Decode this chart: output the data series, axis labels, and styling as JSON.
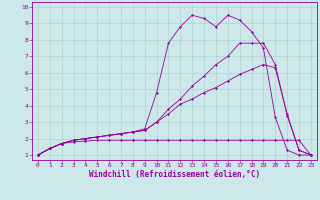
{
  "xlabel": "Windchill (Refroidissement éolien,°C)",
  "background_color": "#cce8e8",
  "line_color": "#990099",
  "grid_color": "#aacccc",
  "xlim": [
    -0.5,
    23.5
  ],
  "ylim": [
    0.7,
    10.3
  ],
  "xticks": [
    0,
    1,
    2,
    3,
    4,
    5,
    6,
    7,
    8,
    9,
    10,
    11,
    12,
    13,
    14,
    15,
    16,
    17,
    18,
    19,
    20,
    21,
    22,
    23
  ],
  "yticks": [
    1,
    2,
    3,
    4,
    5,
    6,
    7,
    8,
    9,
    10
  ],
  "line1_x": [
    0,
    1,
    2,
    3,
    4,
    5,
    6,
    7,
    8,
    9,
    10,
    11,
    12,
    13,
    14,
    15,
    16,
    17,
    18,
    19,
    20,
    21,
    22,
    23
  ],
  "line1_y": [
    1.0,
    1.4,
    1.7,
    1.8,
    1.85,
    1.9,
    1.9,
    1.9,
    1.9,
    1.9,
    1.9,
    1.9,
    1.9,
    1.9,
    1.9,
    1.9,
    1.9,
    1.9,
    1.9,
    1.9,
    1.9,
    1.9,
    1.9,
    1.0
  ],
  "line2_x": [
    0,
    1,
    2,
    3,
    4,
    5,
    6,
    7,
    8,
    9,
    10,
    11,
    12,
    13,
    14,
    15,
    16,
    17,
    18,
    19,
    20,
    21,
    22,
    23
  ],
  "line2_y": [
    1.0,
    1.4,
    1.7,
    1.9,
    2.0,
    2.1,
    2.2,
    2.3,
    2.4,
    2.5,
    3.0,
    3.5,
    4.1,
    4.4,
    4.8,
    5.1,
    5.5,
    5.9,
    6.2,
    6.5,
    6.3,
    3.5,
    1.3,
    1.0
  ],
  "line3_x": [
    0,
    1,
    2,
    3,
    4,
    5,
    6,
    7,
    8,
    9,
    10,
    11,
    12,
    13,
    14,
    15,
    16,
    17,
    18,
    19,
    20,
    21,
    22,
    23
  ],
  "line3_y": [
    1.0,
    1.4,
    1.7,
    1.9,
    2.0,
    2.1,
    2.2,
    2.3,
    2.4,
    2.5,
    3.0,
    3.8,
    4.4,
    5.2,
    5.8,
    6.5,
    7.0,
    7.8,
    7.8,
    7.8,
    6.5,
    3.4,
    1.3,
    1.0
  ],
  "line4_x": [
    0,
    1,
    2,
    3,
    4,
    5,
    6,
    7,
    8,
    9,
    10,
    11,
    12,
    13,
    14,
    15,
    16,
    17,
    18,
    19,
    20,
    21,
    22,
    23
  ],
  "line4_y": [
    1.0,
    1.4,
    1.7,
    1.9,
    2.0,
    2.1,
    2.2,
    2.3,
    2.4,
    2.6,
    4.8,
    7.8,
    8.8,
    9.5,
    9.3,
    8.8,
    9.5,
    9.2,
    8.5,
    7.5,
    3.3,
    1.3,
    1.0,
    1.0
  ],
  "tick_fontsize": 4.5,
  "xlabel_fontsize": 5.5
}
